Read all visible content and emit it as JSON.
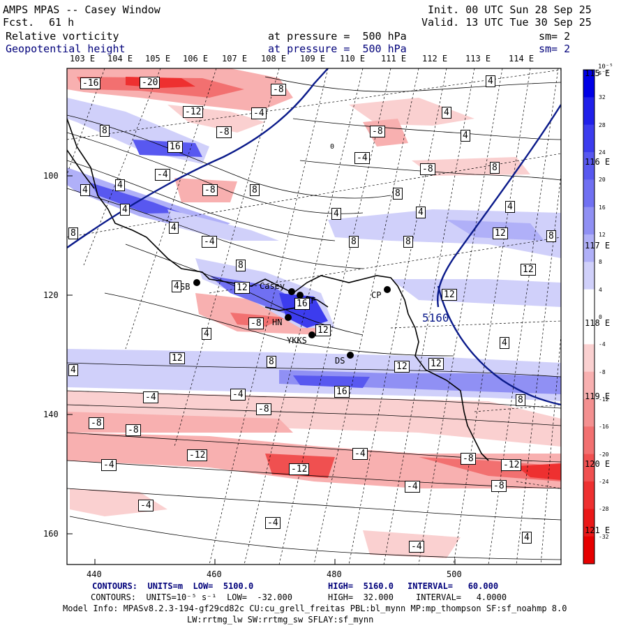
{
  "header": {
    "model_title": "AMPS MPAS -- Casey Window",
    "fcst_label": "Fcst.",
    "fcst_value": "61 h",
    "init": "Init. 00 UTC Sun 28 Sep 25",
    "valid": "Valid. 13 UTC Tue 30 Sep 25",
    "field1_name": "Relative vorticity",
    "field1_level": "at pressure =  500 hPa",
    "field1_sm": "sm= 2",
    "field2_name": "Geopotential height",
    "field2_level": "at pressure =  500 hPa",
    "field2_sm": "sm= 2"
  },
  "longitude_labels": [
    "103 E",
    "104 E",
    "105 E",
    "106 E",
    "107 E",
    "108 E",
    "109 E",
    "110 E",
    "111 E",
    "112 E",
    "113 E",
    "114 E"
  ],
  "right_labels": [
    "115 E",
    "116 E",
    "117 E",
    "118 E",
    "119 E",
    "120 E",
    "121 E"
  ],
  "y_axis_labels": [
    "100",
    "120",
    "140",
    "160"
  ],
  "x_axis_labels": [
    "440",
    "460",
    "480",
    "500"
  ],
  "stations": [
    "SB",
    "Casey",
    "LF",
    "HN",
    "YKKS",
    "CP",
    "DS"
  ],
  "contour_labels": [
    "-16",
    "-20",
    "-8",
    "-12",
    "-4",
    "-8",
    "8",
    "16",
    "-4",
    "4",
    "-8",
    "8",
    "4",
    "-4",
    "-8",
    "-8",
    "4",
    "8",
    "4",
    "8",
    "4",
    "8",
    "4",
    "4",
    "8",
    "12",
    "4",
    "4",
    "4",
    "8",
    "8",
    "12",
    "12",
    "4",
    "12",
    "16",
    "-4",
    "8",
    "-8",
    "12",
    "4",
    "12",
    "8",
    "12",
    "12",
    "16",
    "-4",
    "-8",
    "-4",
    "-8",
    "-12",
    "-8",
    "-12",
    "-4",
    "-8",
    "-12",
    "-4",
    "-4",
    "-4",
    "-4",
    "-8",
    "-4",
    "4",
    "8",
    "4",
    "4",
    "5160",
    "0"
  ],
  "colorbar": {
    "unit": "10⁻⁵ s⁻¹",
    "ticks": [
      "32",
      "28",
      "24",
      "20",
      "16",
      "12",
      "8",
      "4",
      "0",
      "-4",
      "-8",
      "-12",
      "-16",
      "-20",
      "-24",
      "-28",
      "-32"
    ],
    "colors": [
      "#0000e6",
      "#2020ea",
      "#3c3cee",
      "#5858f0",
      "#7070f2",
      "#9090f4",
      "#b0b0f8",
      "#d0d0fa",
      "#ffffff",
      "#ffffff",
      "#fad0d0",
      "#f8b0b0",
      "#f49090",
      "#f27070",
      "#f05050",
      "#ee3030",
      "#ea1818",
      "#e60000"
    ]
  },
  "footer": {
    "line1_contours": "CONTOURS:  UNITS=m  LOW=  5100.0",
    "line1_high": "HIGH=  5160.0",
    "line1_interval": "INTERVAL=   60.000",
    "line2_contours": "CONTOURS:  UNITS=10⁻⁵ s⁻¹  LOW=  -32.000",
    "line2_high": "HIGH=  32.000",
    "line2_interval": "INTERVAL=   4.0000",
    "model_info": "Model Info: MPASv8.2.3-194-gf29cd82c CU:cu_grell_freitas PBL:bl_mynn MP:mp_thompson SF:sf_noahmp 8.0",
    "model_info2": "LW:rrtmg_lw SW:rrtmg_sw SFLAY:sf_mynn"
  }
}
